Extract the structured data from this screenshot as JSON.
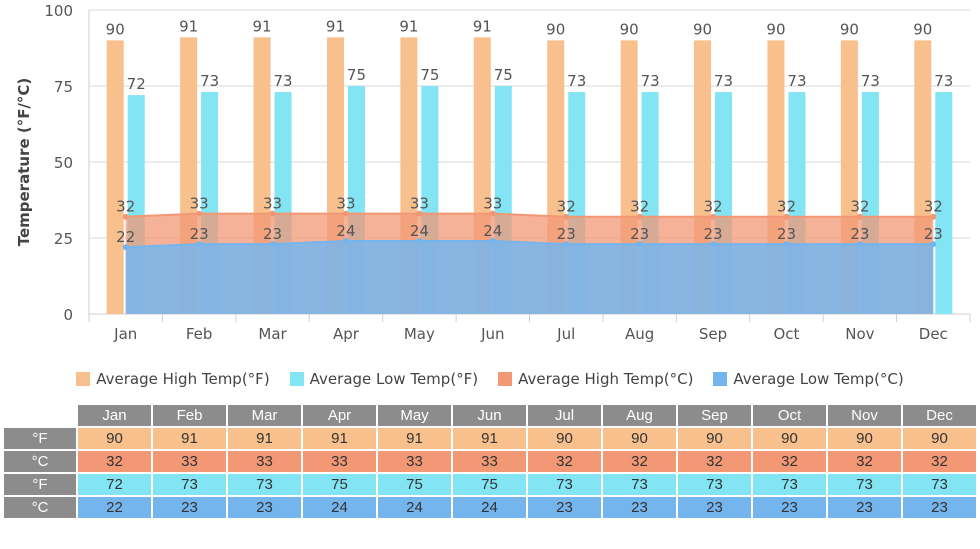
{
  "chart_data": {
    "type": "bar",
    "ylabel": "Temperature (°F/°C)",
    "ylim": [
      0,
      100
    ],
    "yticks": [
      0,
      25,
      50,
      75,
      100
    ],
    "categories": [
      "Jan",
      "Feb",
      "Mar",
      "Apr",
      "May",
      "Jun",
      "Jul",
      "Aug",
      "Sep",
      "Oct",
      "Nov",
      "Dec"
    ],
    "series": [
      {
        "name": "Average High Temp(°F)",
        "kind": "bar",
        "color": "#f8c08c",
        "values": [
          90,
          91,
          91,
          91,
          91,
          91,
          90,
          90,
          90,
          90,
          90,
          90
        ]
      },
      {
        "name": "Average Low Temp(°F)",
        "kind": "bar",
        "color": "#83e4f4",
        "values": [
          72,
          73,
          73,
          75,
          75,
          75,
          73,
          73,
          73,
          73,
          73,
          73
        ]
      },
      {
        "name": "Average High Temp(°C)",
        "kind": "area",
        "color": "#f29875",
        "values": [
          32,
          33,
          33,
          33,
          33,
          33,
          32,
          32,
          32,
          32,
          32,
          32
        ]
      },
      {
        "name": "Average Low Temp(°C)",
        "kind": "area",
        "color": "#75b5ee",
        "values": [
          22,
          23,
          23,
          24,
          24,
          24,
          23,
          23,
          23,
          23,
          23,
          23
        ]
      }
    ],
    "legend_position": "bottom",
    "grid": true
  },
  "table": {
    "months": [
      "Jan",
      "Feb",
      "Mar",
      "Apr",
      "May",
      "Jun",
      "Jul",
      "Aug",
      "Sep",
      "Oct",
      "Nov",
      "Dec"
    ],
    "rows": [
      {
        "label": "°F",
        "cls": "r-hf",
        "values": [
          90,
          91,
          91,
          91,
          91,
          91,
          90,
          90,
          90,
          90,
          90,
          90
        ]
      },
      {
        "label": "°C",
        "cls": "r-hc",
        "values": [
          32,
          33,
          33,
          33,
          33,
          33,
          32,
          32,
          32,
          32,
          32,
          32
        ]
      },
      {
        "label": "°F",
        "cls": "r-lf",
        "values": [
          72,
          73,
          73,
          75,
          75,
          75,
          73,
          73,
          73,
          73,
          73,
          73
        ]
      },
      {
        "label": "°C",
        "cls": "r-lc",
        "values": [
          22,
          23,
          23,
          24,
          24,
          24,
          23,
          23,
          23,
          23,
          23,
          23
        ]
      }
    ]
  }
}
